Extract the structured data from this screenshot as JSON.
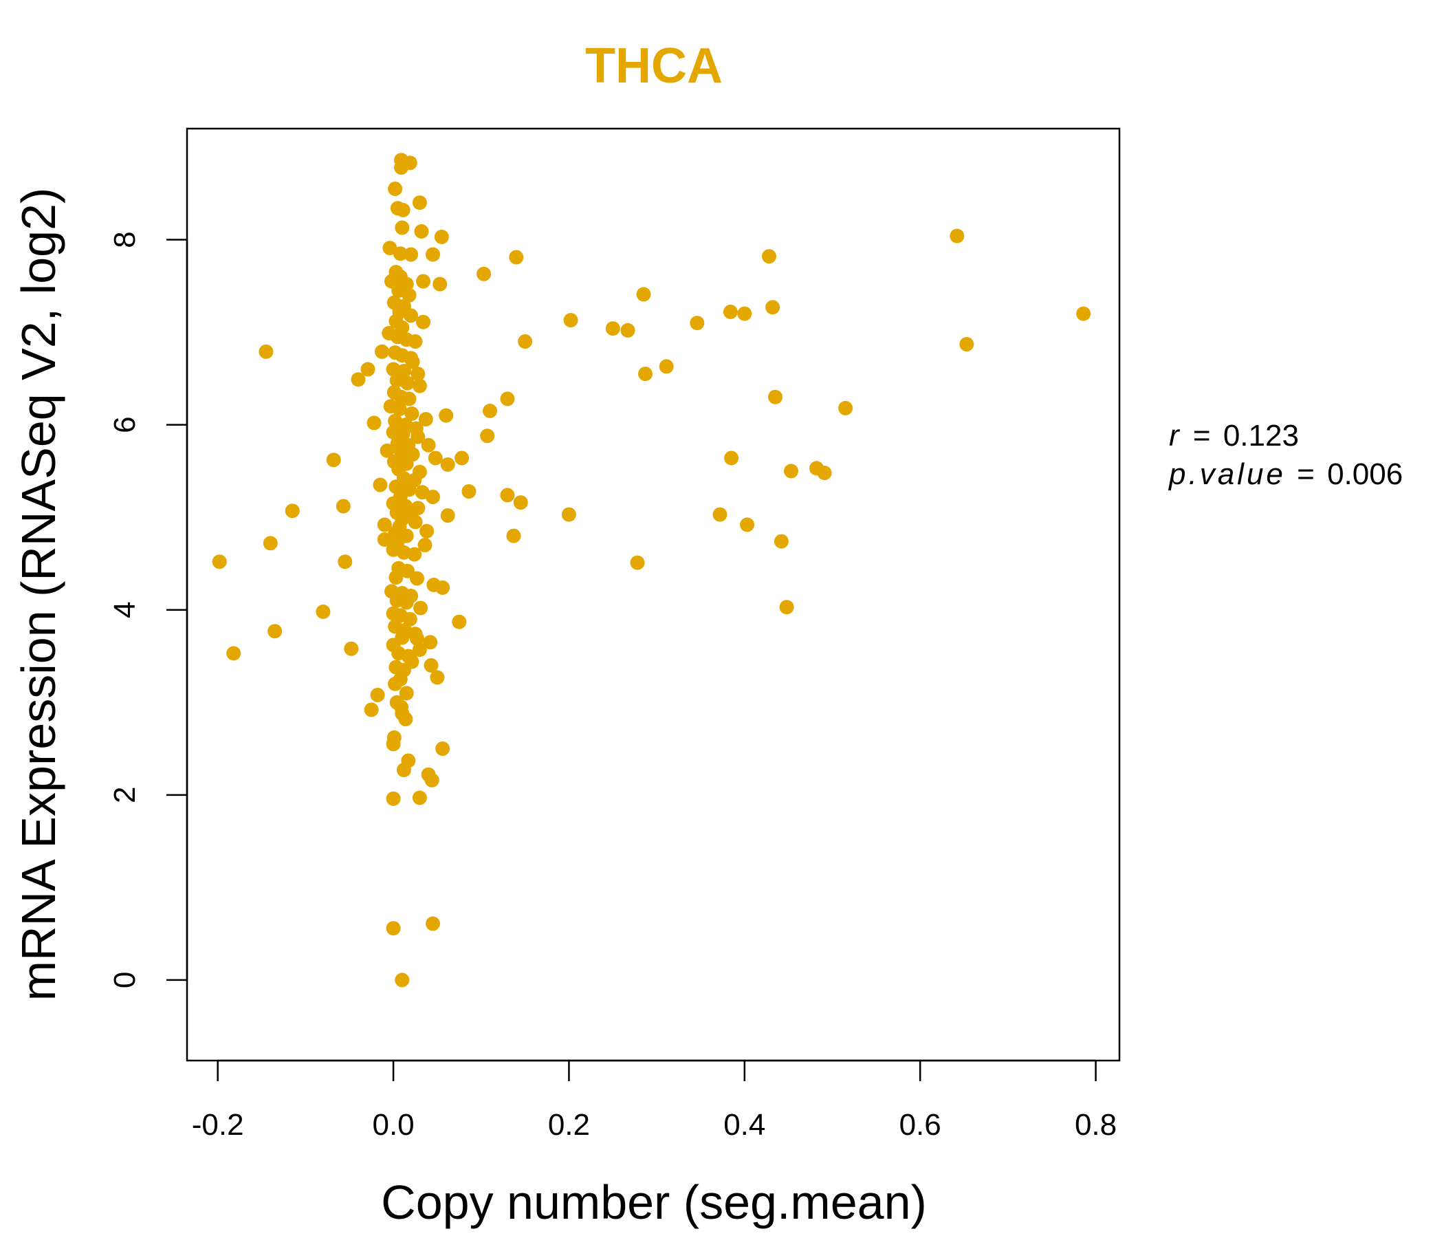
{
  "colors": {
    "point": "#E3A700",
    "title": "#E3A700",
    "axis": "#000000",
    "background": "#ffffff"
  },
  "chart_data": {
    "type": "scatter",
    "title": "THCA",
    "xlabel": "Copy number (seg.mean)",
    "ylabel": "mRNA Expression (RNASeq V2, log2)",
    "xlim": [
      -0.235,
      0.827
    ],
    "ylim": [
      -0.87,
      9.2
    ],
    "xticks": [
      -0.2,
      0.0,
      0.2,
      0.4,
      0.6,
      0.8
    ],
    "xtick_labels": [
      "-0.2",
      "0.0",
      "0.2",
      "0.4",
      "0.6",
      "0.8"
    ],
    "yticks": [
      0,
      2,
      4,
      6,
      8
    ],
    "ytick_labels": [
      "0",
      "2",
      "4",
      "6",
      "8"
    ],
    "annotation": {
      "r_label": "r",
      "r_value": "0.123",
      "p_label": "p.value",
      "p_value": "0.006",
      "equals": "="
    },
    "points": [
      [
        0.009,
        8.86
      ],
      [
        0.019,
        8.83
      ],
      [
        0.009,
        8.78
      ],
      [
        0.002,
        8.55
      ],
      [
        0.03,
        8.4
      ],
      [
        0.005,
        8.34
      ],
      [
        0.011,
        8.32
      ],
      [
        0.01,
        8.13
      ],
      [
        0.032,
        8.09
      ],
      [
        0.055,
        8.03
      ],
      [
        -0.004,
        7.91
      ],
      [
        0.008,
        7.85
      ],
      [
        0.02,
        7.84
      ],
      [
        0.045,
        7.84
      ],
      [
        0.14,
        7.81
      ],
      [
        0.428,
        7.82
      ],
      [
        0.642,
        8.04
      ],
      [
        0.103,
        7.63
      ],
      [
        0.003,
        7.65
      ],
      [
        0.008,
        7.6
      ],
      [
        -0.002,
        7.55
      ],
      [
        0.015,
        7.52
      ],
      [
        0.034,
        7.55
      ],
      [
        0.053,
        7.52
      ],
      [
        0.006,
        7.45
      ],
      [
        0.018,
        7.4
      ],
      [
        0.285,
        7.41
      ],
      [
        0.001,
        7.32
      ],
      [
        0.012,
        7.28
      ],
      [
        0.432,
        7.27
      ],
      [
        0.007,
        7.22
      ],
      [
        0.02,
        7.18
      ],
      [
        0.384,
        7.22
      ],
      [
        0.4,
        7.2
      ],
      [
        0.786,
        7.2
      ],
      [
        0.003,
        7.12
      ],
      [
        0.01,
        7.05
      ],
      [
        0.034,
        7.11
      ],
      [
        0.202,
        7.13
      ],
      [
        0.346,
        7.1
      ],
      [
        0.25,
        7.04
      ],
      [
        0.267,
        7.02
      ],
      [
        -0.005,
        6.99
      ],
      [
        0.005,
        6.95
      ],
      [
        0.015,
        6.92
      ],
      [
        0.025,
        6.9
      ],
      [
        0.15,
        6.9
      ],
      [
        0.653,
        6.87
      ],
      [
        -0.145,
        6.79
      ],
      [
        -0.013,
        6.79
      ],
      [
        0.002,
        6.78
      ],
      [
        0.01,
        6.75
      ],
      [
        0.02,
        6.72
      ],
      [
        0.022,
        6.68
      ],
      [
        0.311,
        6.63
      ],
      [
        -0.029,
        6.6
      ],
      [
        0.0,
        6.6
      ],
      [
        0.012,
        6.58
      ],
      [
        0.028,
        6.55
      ],
      [
        0.287,
        6.55
      ],
      [
        -0.04,
        6.49
      ],
      [
        0.004,
        6.48
      ],
      [
        0.016,
        6.45
      ],
      [
        0.03,
        6.42
      ],
      [
        0.001,
        6.35
      ],
      [
        0.009,
        6.3
      ],
      [
        0.018,
        6.28
      ],
      [
        0.435,
        6.3
      ],
      [
        0.13,
        6.28
      ],
      [
        -0.003,
        6.2
      ],
      [
        0.007,
        6.17
      ],
      [
        0.021,
        6.12
      ],
      [
        0.06,
        6.1
      ],
      [
        0.11,
        6.15
      ],
      [
        0.515,
        6.18
      ],
      [
        0.037,
        6.06
      ],
      [
        -0.022,
        6.02
      ],
      [
        0.002,
        6.04
      ],
      [
        0.014,
        6.0
      ],
      [
        0.026,
        5.96
      ],
      [
        0.0,
        5.92
      ],
      [
        0.011,
        5.9
      ],
      [
        0.028,
        5.87
      ],
      [
        0.107,
        5.88
      ],
      [
        0.005,
        5.8
      ],
      [
        0.017,
        5.78
      ],
      [
        0.04,
        5.78
      ],
      [
        -0.007,
        5.72
      ],
      [
        0.009,
        5.7
      ],
      [
        0.022,
        5.68
      ],
      [
        0.048,
        5.64
      ],
      [
        0.078,
        5.64
      ],
      [
        0.385,
        5.64
      ],
      [
        -0.068,
        5.62
      ],
      [
        0.001,
        5.6
      ],
      [
        0.015,
        5.58
      ],
      [
        0.062,
        5.57
      ],
      [
        0.482,
        5.53
      ],
      [
        0.491,
        5.48
      ],
      [
        0.453,
        5.5
      ],
      [
        0.006,
        5.52
      ],
      [
        0.03,
        5.49
      ],
      [
        0.012,
        5.42
      ],
      [
        0.024,
        5.4
      ],
      [
        -0.015,
        5.35
      ],
      [
        0.003,
        5.33
      ],
      [
        0.018,
        5.3
      ],
      [
        0.033,
        5.27
      ],
      [
        0.086,
        5.28
      ],
      [
        0.13,
        5.24
      ],
      [
        0.008,
        5.22
      ],
      [
        0.045,
        5.22
      ],
      [
        0.145,
        5.16
      ],
      [
        -0.057,
        5.12
      ],
      [
        0.0,
        5.15
      ],
      [
        0.014,
        5.12
      ],
      [
        0.028,
        5.1
      ],
      [
        -0.115,
        5.07
      ],
      [
        0.004,
        5.05
      ],
      [
        0.02,
        5.02
      ],
      [
        0.062,
        5.02
      ],
      [
        0.2,
        5.03
      ],
      [
        0.372,
        5.03
      ],
      [
        0.01,
        4.98
      ],
      [
        0.025,
        4.95
      ],
      [
        -0.01,
        4.92
      ],
      [
        0.007,
        4.9
      ],
      [
        0.403,
        4.92
      ],
      [
        0.038,
        4.85
      ],
      [
        0.002,
        4.83
      ],
      [
        0.015,
        4.8
      ],
      [
        0.137,
        4.8
      ],
      [
        -0.01,
        4.76
      ],
      [
        0.005,
        4.74
      ],
      [
        -0.14,
        4.72
      ],
      [
        0.036,
        4.7
      ],
      [
        0.442,
        4.74
      ],
      [
        0.0,
        4.65
      ],
      [
        0.012,
        4.62
      ],
      [
        0.024,
        4.6
      ],
      [
        -0.198,
        4.52
      ],
      [
        -0.055,
        4.52
      ],
      [
        0.278,
        4.51
      ],
      [
        0.006,
        4.45
      ],
      [
        0.016,
        4.42
      ],
      [
        0.003,
        4.35
      ],
      [
        0.027,
        4.34
      ],
      [
        0.046,
        4.27
      ],
      [
        0.056,
        4.24
      ],
      [
        -0.002,
        4.2
      ],
      [
        0.01,
        4.18
      ],
      [
        0.02,
        4.15
      ],
      [
        0.004,
        4.1
      ],
      [
        0.015,
        4.08
      ],
      [
        0.031,
        4.02
      ],
      [
        0.448,
        4.03
      ],
      [
        -0.08,
        3.98
      ],
      [
        0.0,
        3.96
      ],
      [
        0.008,
        3.94
      ],
      [
        0.019,
        3.9
      ],
      [
        0.075,
        3.87
      ],
      [
        0.002,
        3.82
      ],
      [
        0.013,
        3.78
      ],
      [
        -0.135,
        3.77
      ],
      [
        0.025,
        3.74
      ],
      [
        0.01,
        3.7
      ],
      [
        0.027,
        3.69
      ],
      [
        0.042,
        3.65
      ],
      [
        0.0,
        3.62
      ],
      [
        -0.048,
        3.58
      ],
      [
        0.03,
        3.57
      ],
      [
        0.006,
        3.53
      ],
      [
        -0.182,
        3.53
      ],
      [
        0.017,
        3.5
      ],
      [
        0.021,
        3.44
      ],
      [
        0.043,
        3.4
      ],
      [
        0.003,
        3.38
      ],
      [
        0.012,
        3.35
      ],
      [
        0.05,
        3.27
      ],
      [
        0.008,
        3.25
      ],
      [
        0.002,
        3.2
      ],
      [
        0.015,
        3.1
      ],
      [
        -0.018,
        3.08
      ],
      [
        0.004,
        3.0
      ],
      [
        0.009,
        2.95
      ],
      [
        -0.025,
        2.92
      ],
      [
        0.01,
        2.88
      ],
      [
        0.014,
        2.82
      ],
      [
        0.001,
        2.62
      ],
      [
        0.0,
        2.55
      ],
      [
        0.056,
        2.5
      ],
      [
        0.017,
        2.37
      ],
      [
        0.012,
        2.27
      ],
      [
        0.04,
        2.22
      ],
      [
        0.044,
        2.16
      ],
      [
        0.0,
        1.96
      ],
      [
        0.03,
        1.97
      ],
      [
        0.0,
        0.56
      ],
      [
        0.045,
        0.61
      ],
      [
        0.01,
        0.0
      ]
    ]
  }
}
